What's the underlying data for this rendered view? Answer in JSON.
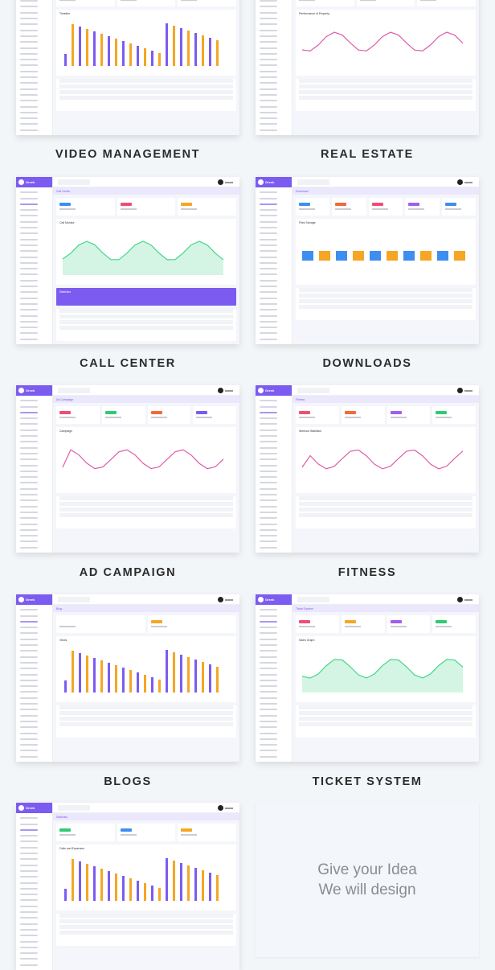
{
  "brand": "Greek",
  "accent": "#7c5cf0",
  "cards": [
    {
      "label": "VIDEO MANAGEMENT",
      "title": "Video Management",
      "chart": "bar",
      "tiles": [
        "#f04d76",
        "#f6a623",
        "#7c5cf0"
      ],
      "panel_title": "Timeline",
      "stat": false
    },
    {
      "label": "REAL ESTATE",
      "title": "Real Estate",
      "chart": "line",
      "tiles": [
        "#f04d76",
        "#f6a623",
        "#2ecc71"
      ],
      "panel_title": "Performance of Property",
      "stat": false
    },
    {
      "label": "CALL CENTER",
      "title": "Call Center",
      "chart": "area",
      "tiles": [
        "#3d8ef0",
        "#f04d76",
        "#f6a623"
      ],
      "panel_title": "Call Monitor",
      "stat": true,
      "stat_title": "Statistics"
    },
    {
      "label": "DOWNLOADS",
      "title": "Download",
      "chart": "none",
      "tiles": [
        "#3d8ef0",
        "#f26a3a",
        "#f04d76",
        "#a35cf0",
        "#3d8ef0"
      ],
      "panel_title": "Files Storage",
      "stat": false
    },
    {
      "label": "AD CAMPAIGN",
      "title": "Ad Campaign",
      "chart": "line",
      "tiles": [
        "#f04d76",
        "#2ecc71",
        "#f26a3a",
        "#7c5cf0"
      ],
      "panel_title": "Campaign",
      "stat": false
    },
    {
      "label": "FITNESS",
      "title": "Fitness",
      "chart": "line",
      "tiles": [
        "#f04d76",
        "#f26a3a",
        "#a35cf0",
        "#2ecc71"
      ],
      "panel_title": "Workout Statistics",
      "stat": false
    },
    {
      "label": "BLOGS",
      "title": "Blog",
      "chart": "bar",
      "tiles": [
        "#ffffff",
        "#f6a623"
      ],
      "panel_title": "Views",
      "stat": false
    },
    {
      "label": "TICKET SYSTEM",
      "title": "Ticket System",
      "chart": "area",
      "tiles": [
        "#f04d76",
        "#f6a623",
        "#a35cf0",
        "#2ecc71"
      ],
      "panel_title": "Sales Graph",
      "stat": false
    },
    {
      "label": "",
      "title": "Statistics",
      "chart": "bar",
      "tiles": [
        "#2ecc71",
        "#3d8ef0",
        "#f6a623"
      ],
      "panel_title": "Calls and Expenses",
      "stat": false
    }
  ],
  "idea": {
    "line1": "Give your Idea",
    "line2": "We will design"
  }
}
